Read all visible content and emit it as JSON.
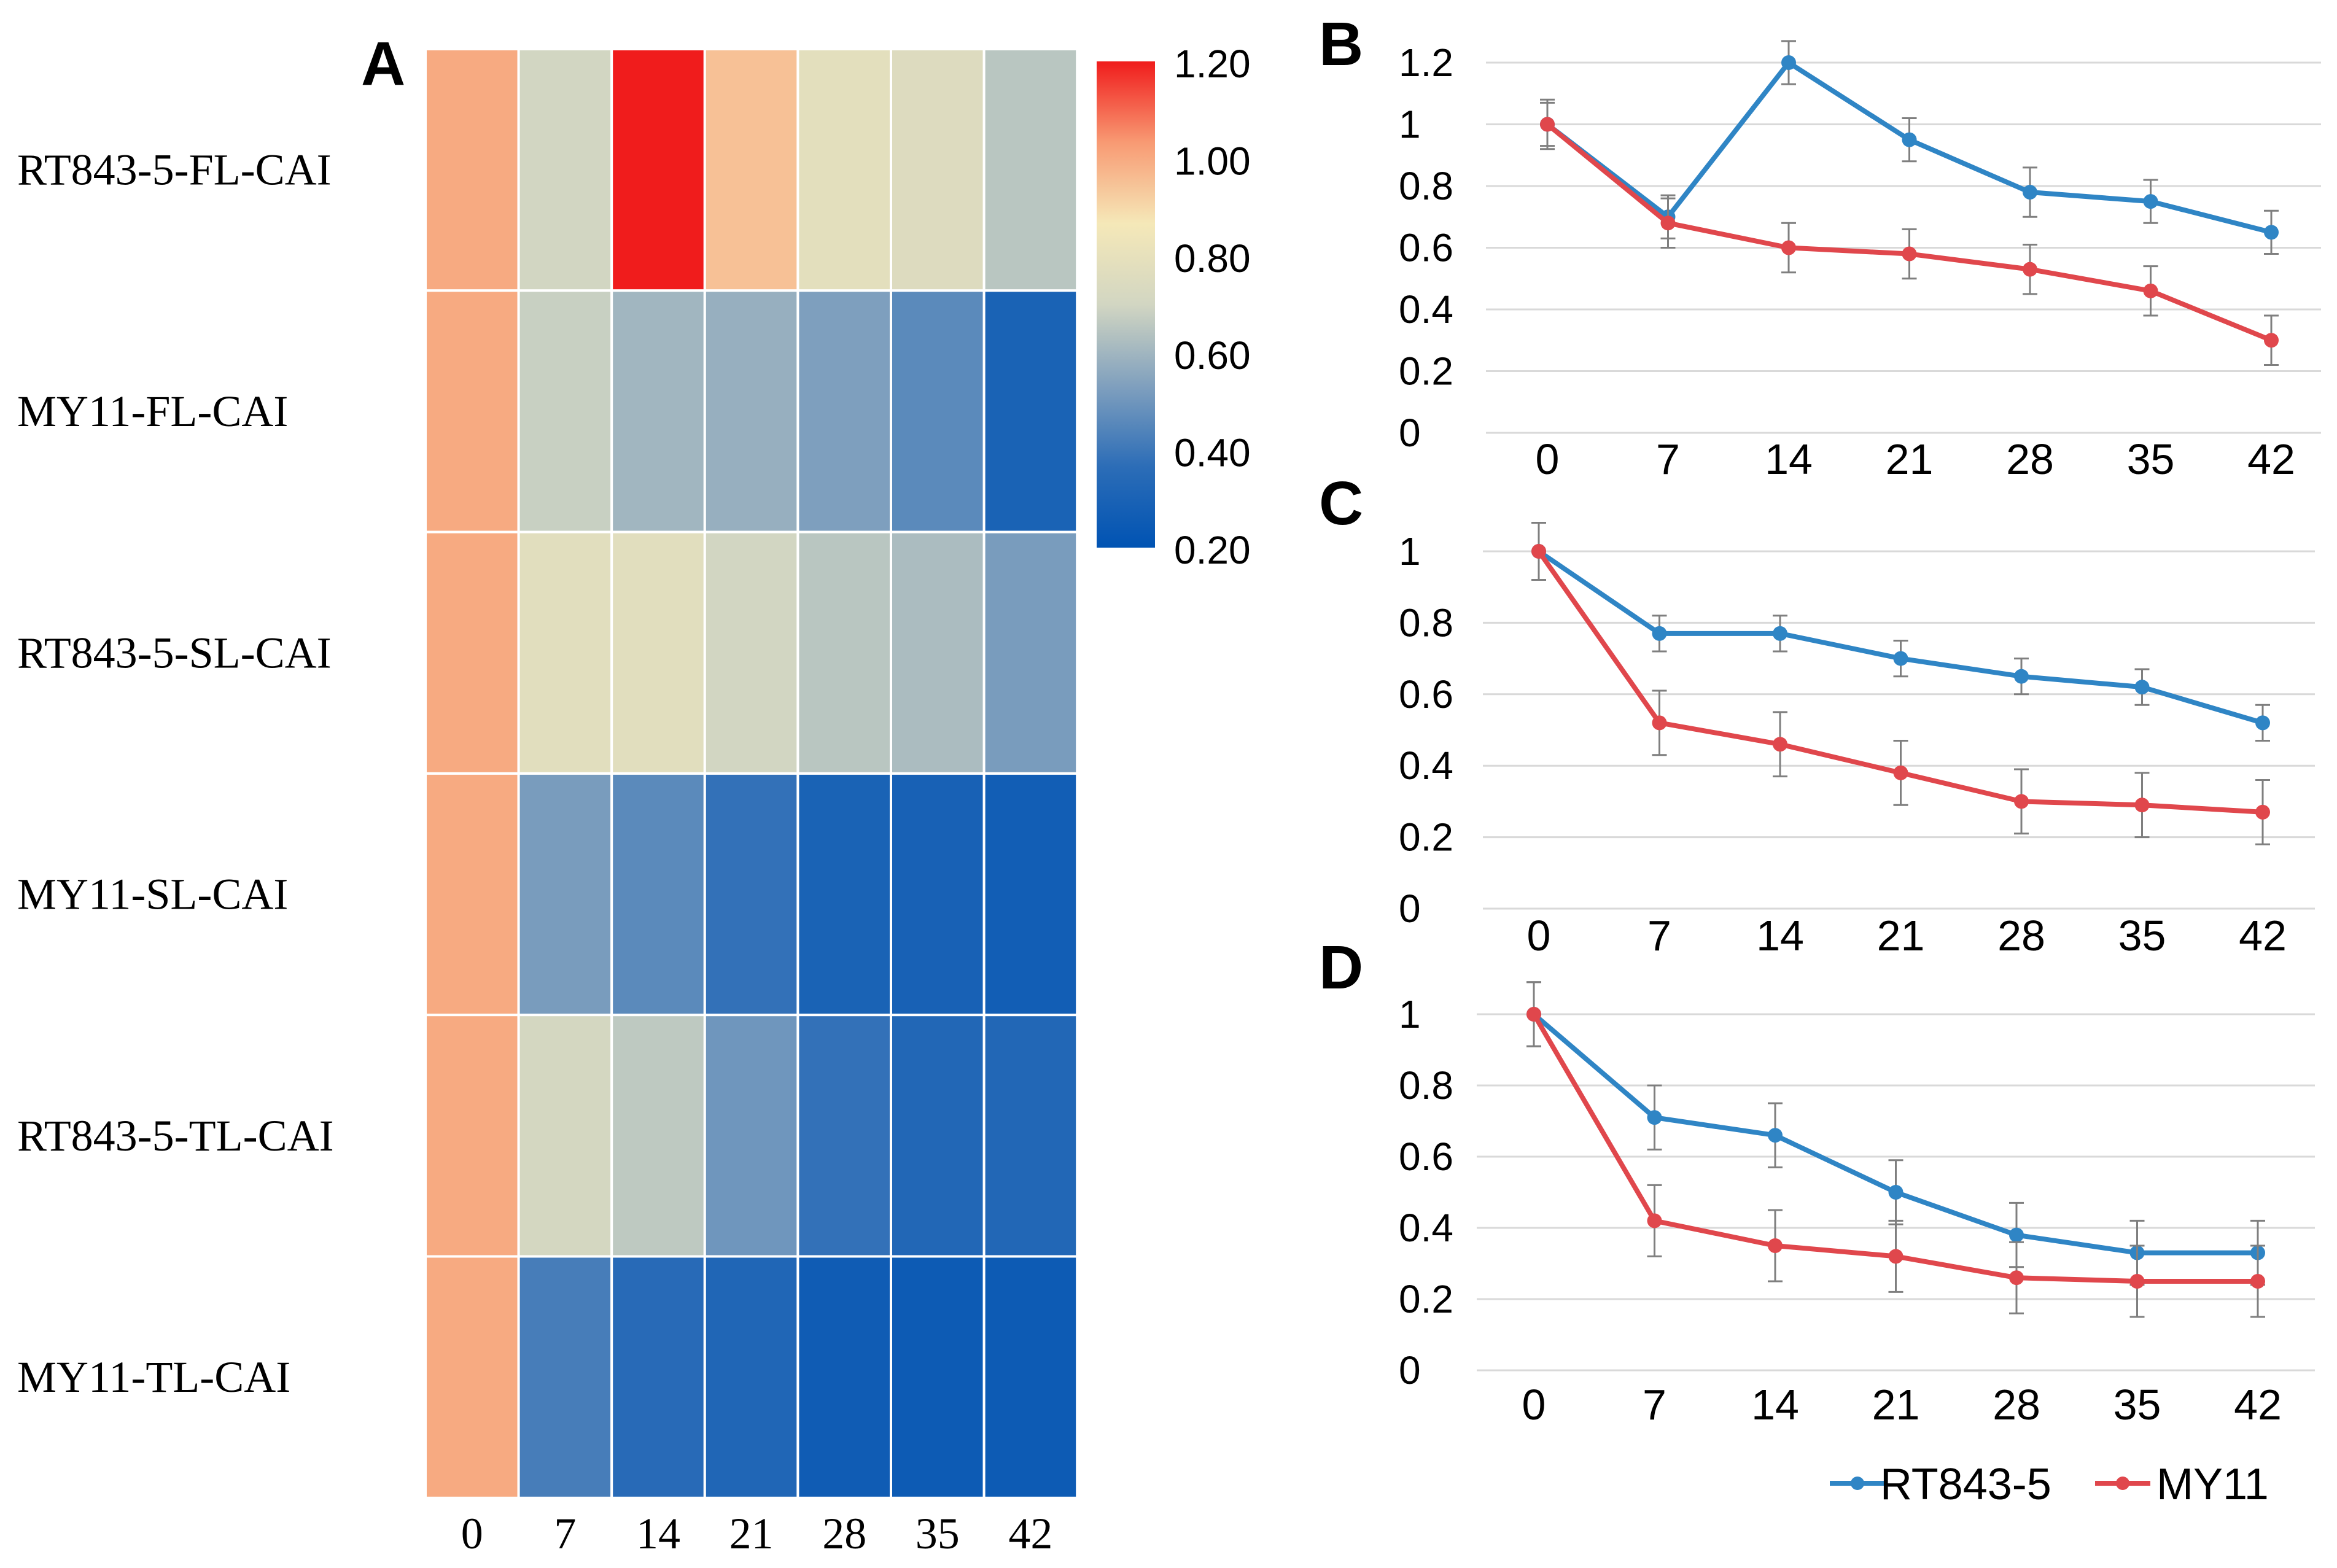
{
  "panel_letters": {
    "a": "A",
    "b": "B",
    "c": "C",
    "d": "D"
  },
  "chart_data": [
    {
      "type": "heatmap",
      "panel": "A",
      "rows": [
        "RT843-5-FL-CAI",
        "MY11-FL-CAI",
        "RT843-5-SL-CAI",
        "MY11-SL-CAI",
        "RT843-5-TL-CAI",
        "MY11-TL-CAI"
      ],
      "columns": [
        "0",
        "7",
        "14",
        "21",
        "28",
        "35",
        "42"
      ],
      "values": [
        [
          1.0,
          0.7,
          1.2,
          0.95,
          0.78,
          0.75,
          0.65
        ],
        [
          1.0,
          0.68,
          0.6,
          0.58,
          0.53,
          0.46,
          0.3
        ],
        [
          1.0,
          0.77,
          0.77,
          0.7,
          0.65,
          0.62,
          0.52
        ],
        [
          1.0,
          0.52,
          0.46,
          0.38,
          0.3,
          0.29,
          0.27
        ],
        [
          1.0,
          0.71,
          0.66,
          0.5,
          0.38,
          0.33,
          0.33
        ],
        [
          1.0,
          0.42,
          0.35,
          0.32,
          0.26,
          0.25,
          0.25
        ]
      ],
      "colorbar": {
        "min": 0.2,
        "max": 1.2,
        "ticks": [
          "1.20",
          "1.00",
          "0.80",
          "0.60",
          "0.40",
          "0.20"
        ],
        "colors": [
          "#0053b3",
          "#2c6db7",
          "#80a0be",
          "#d2d6c2",
          "#f5e8b8",
          "#f89a73",
          "#f01c1c"
        ]
      }
    },
    {
      "type": "line",
      "panel": "B",
      "x": [
        "0",
        "7",
        "14",
        "21",
        "28",
        "35",
        "42"
      ],
      "ylim": [
        0,
        1.2
      ],
      "ytick_labels": [
        "0",
        "0.2",
        "0.4",
        "0.6",
        "0.8",
        "1",
        "1.2"
      ],
      "series": [
        {
          "name": "RT843-5",
          "color": "#2f85c5",
          "values": [
            1.0,
            0.7,
            1.2,
            0.95,
            0.78,
            0.75,
            0.65
          ],
          "errors": [
            0.08,
            0.07,
            0.07,
            0.07,
            0.08,
            0.07,
            0.07
          ]
        },
        {
          "name": "MY11",
          "color": "#e0474c",
          "values": [
            1.0,
            0.68,
            0.6,
            0.58,
            0.53,
            0.46,
            0.3
          ],
          "errors": [
            0.07,
            0.08,
            0.08,
            0.08,
            0.08,
            0.08,
            0.08
          ]
        }
      ]
    },
    {
      "type": "line",
      "panel": "C",
      "x": [
        "0",
        "7",
        "14",
        "21",
        "28",
        "35",
        "42"
      ],
      "ylim": [
        0,
        1.0
      ],
      "ytick_labels": [
        "0",
        "0.2",
        "0.4",
        "0.6",
        "0.8",
        "1"
      ],
      "series": [
        {
          "name": "RT843-5",
          "color": "#2f85c5",
          "values": [
            1.0,
            0.77,
            0.77,
            0.7,
            0.65,
            0.62,
            0.52
          ],
          "errors": [
            0.08,
            0.05,
            0.05,
            0.05,
            0.05,
            0.05,
            0.05
          ]
        },
        {
          "name": "MY11",
          "color": "#e0474c",
          "values": [
            1.0,
            0.52,
            0.46,
            0.38,
            0.3,
            0.29,
            0.27
          ],
          "errors": [
            0.08,
            0.09,
            0.09,
            0.09,
            0.09,
            0.09,
            0.09
          ]
        }
      ]
    },
    {
      "type": "line",
      "panel": "D",
      "x": [
        "0",
        "7",
        "14",
        "21",
        "28",
        "35",
        "42"
      ],
      "ylim": [
        0,
        1.0
      ],
      "ytick_labels": [
        "0",
        "0.2",
        "0.4",
        "0.6",
        "0.8",
        "1"
      ],
      "series": [
        {
          "name": "RT843-5",
          "color": "#2f85c5",
          "values": [
            1.0,
            0.71,
            0.66,
            0.5,
            0.38,
            0.33,
            0.33
          ],
          "errors": [
            0.09,
            0.09,
            0.09,
            0.09,
            0.09,
            0.09,
            0.09
          ]
        },
        {
          "name": "MY11",
          "color": "#e0474c",
          "values": [
            1.0,
            0.42,
            0.35,
            0.32,
            0.26,
            0.25,
            0.25
          ],
          "errors": [
            0.09,
            0.1,
            0.1,
            0.1,
            0.1,
            0.1,
            0.1
          ]
        }
      ],
      "legend": {
        "position": "bottom-right",
        "entries": [
          "RT843-5",
          "MY11"
        ]
      }
    }
  ]
}
